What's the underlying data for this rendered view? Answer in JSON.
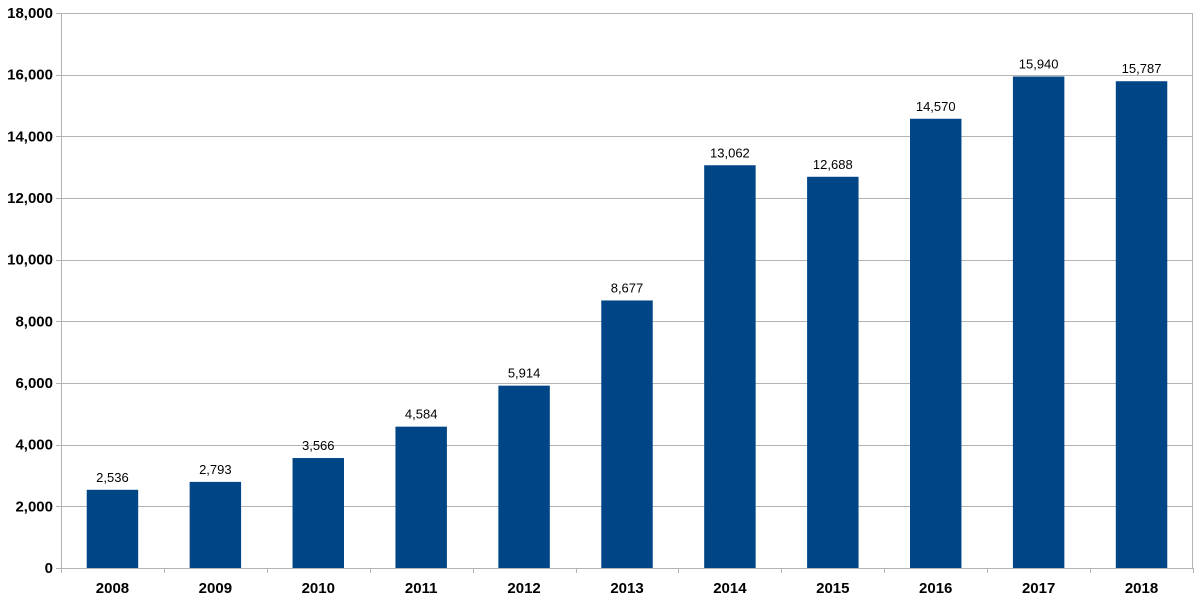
{
  "chart_data": {
    "type": "bar",
    "title": "",
    "xlabel": "",
    "ylabel": "",
    "categories": [
      "2008",
      "2009",
      "2010",
      "2011",
      "2012",
      "2013",
      "2014",
      "2015",
      "2016",
      "2017",
      "2018"
    ],
    "values": [
      2536,
      2793,
      3566,
      4584,
      5914,
      8677,
      13062,
      12688,
      14570,
      15940,
      15787
    ],
    "data_labels": [
      "2,536",
      "2,793",
      "3,566",
      "4,584",
      "5,914",
      "8,677",
      "13,062",
      "12,688",
      "14,570",
      "15,940",
      "15,787"
    ],
    "ylim": [
      0,
      18000
    ],
    "y_ticks": [
      0,
      2000,
      4000,
      6000,
      8000,
      10000,
      12000,
      14000,
      16000,
      18000
    ],
    "y_tick_labels": [
      "0",
      "2,000",
      "4,000",
      "6,000",
      "8,000",
      "10,000",
      "12,000",
      "14,000",
      "16,000",
      "18,000"
    ],
    "grid": true,
    "legend": "none",
    "colors": {
      "bar": "#004586",
      "grid": "#b3b3b3",
      "axis": "#b3b3b3"
    }
  }
}
